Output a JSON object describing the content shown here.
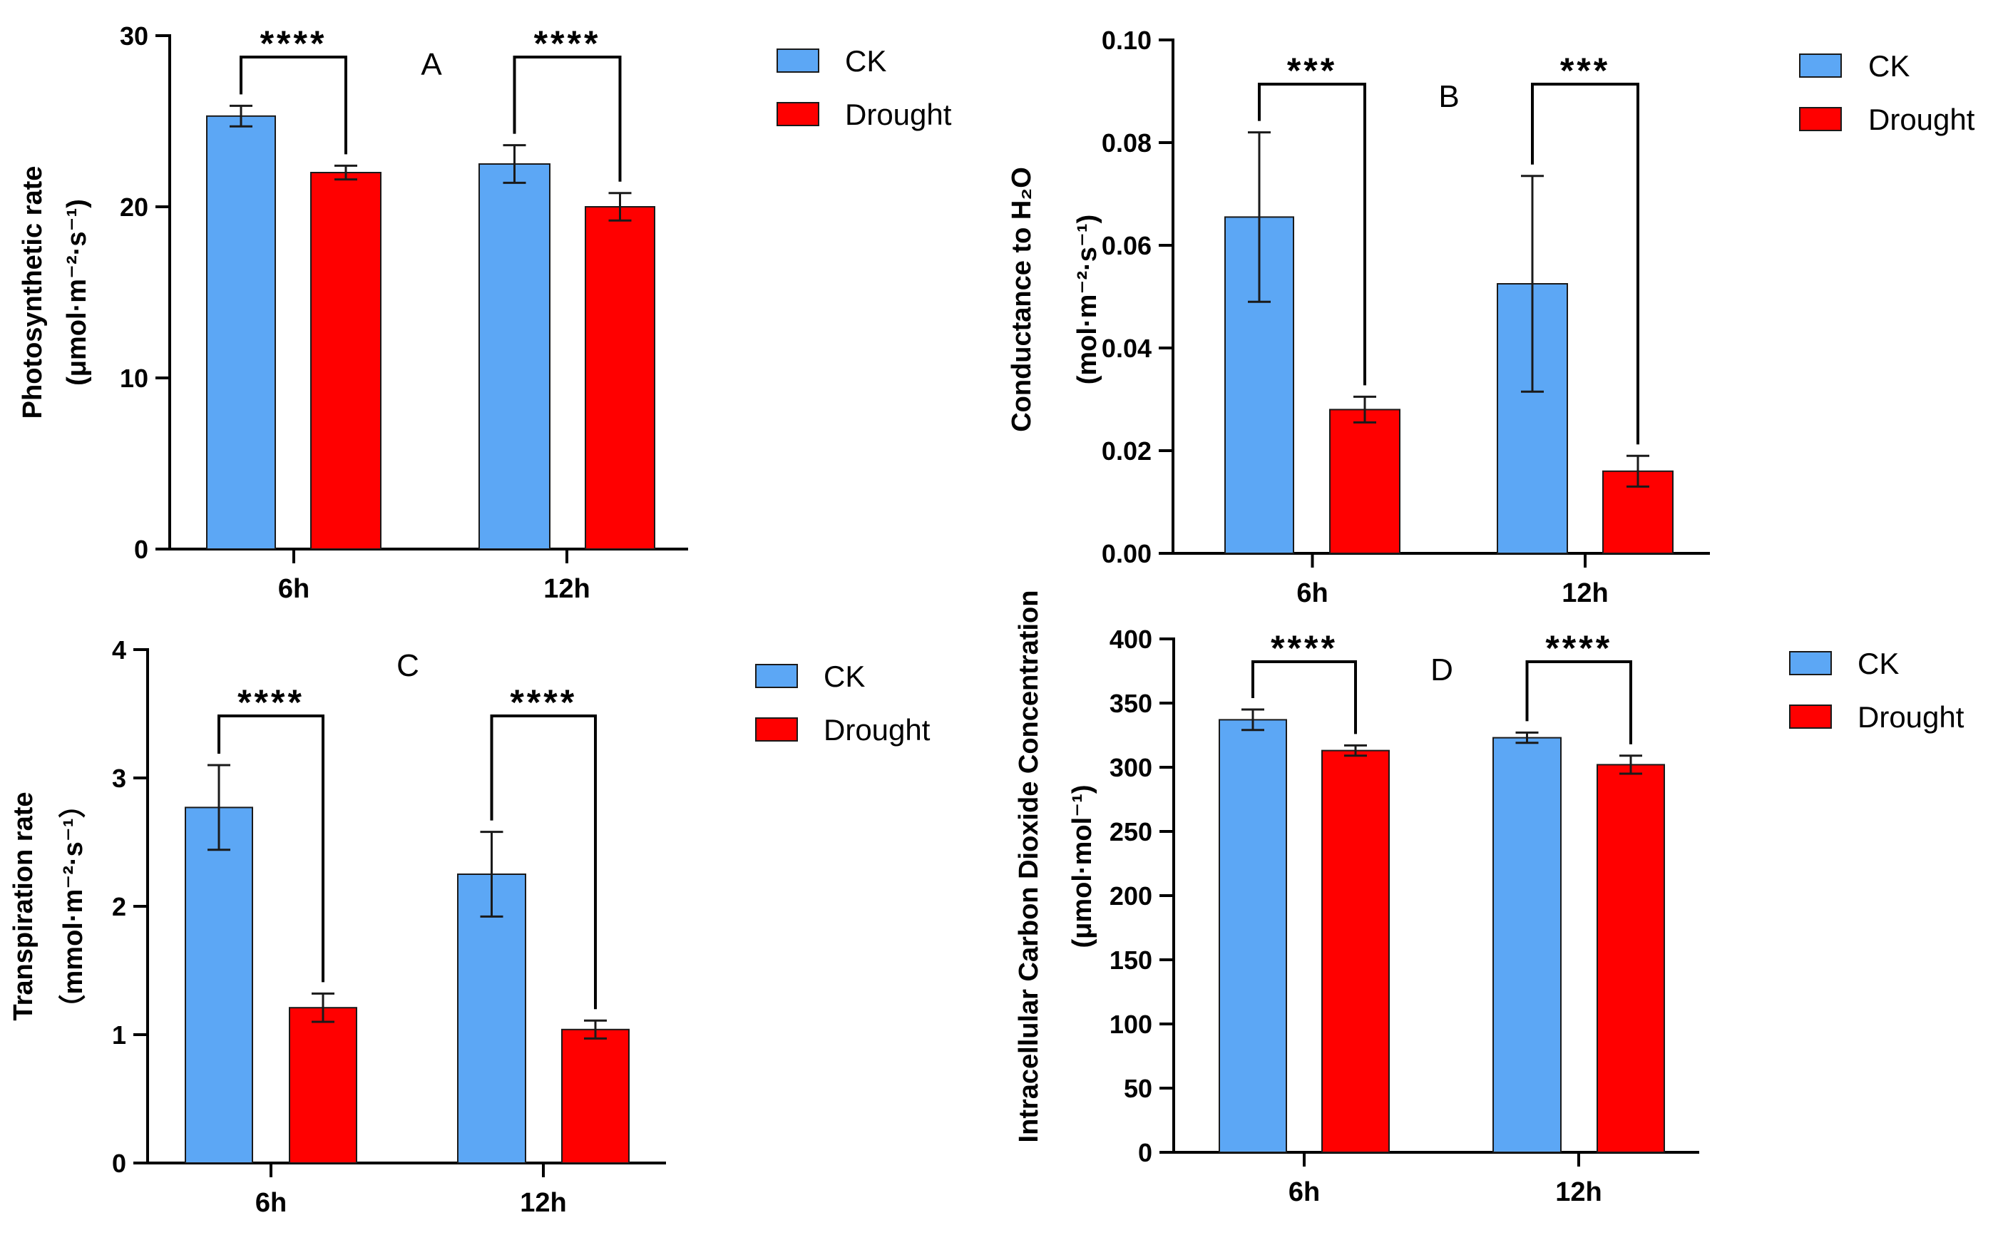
{
  "colors": {
    "ck": "#5ca7f5",
    "drought": "#ff0000"
  },
  "legend": {
    "ck": "CK",
    "drought": "Drought"
  },
  "chart_data": [
    {
      "type": "bar",
      "panel": "A",
      "ylabel_line1": "Photosynthetic rate",
      "ylabel_line2": "(μmol·m⁻²·s⁻¹)",
      "categories": [
        "6h",
        "12h"
      ],
      "ylim": [
        0,
        30
      ],
      "yticks": [
        0,
        10,
        20,
        30
      ],
      "ytick_labels": [
        "0",
        "10",
        "20",
        "30"
      ],
      "series": [
        {
          "name": "CK",
          "values": [
            25.3,
            22.5
          ],
          "errors": [
            0.6,
            1.1
          ]
        },
        {
          "name": "Drought",
          "values": [
            22.0,
            20.0
          ],
          "errors": [
            0.4,
            0.8
          ]
        }
      ],
      "significance": [
        "****",
        "****"
      ]
    },
    {
      "type": "bar",
      "panel": "B",
      "ylabel_line1": "Conductance to H₂O",
      "ylabel_line2": "(mol·m⁻²·s⁻¹)",
      "categories": [
        "6h",
        "12h"
      ],
      "ylim": [
        0,
        0.1
      ],
      "yticks": [
        0,
        0.02,
        0.04,
        0.06,
        0.08,
        0.1
      ],
      "ytick_labels": [
        "0.00",
        "0.02",
        "0.04",
        "0.06",
        "0.08",
        "0.10"
      ],
      "series": [
        {
          "name": "CK",
          "values": [
            0.0655,
            0.0525
          ],
          "errors": [
            0.0165,
            0.021
          ]
        },
        {
          "name": "Drought",
          "values": [
            0.028,
            0.016
          ],
          "errors": [
            0.0025,
            0.003
          ]
        }
      ],
      "significance": [
        "***",
        "***"
      ]
    },
    {
      "type": "bar",
      "panel": "C",
      "ylabel_line1": "Transpiration rate",
      "ylabel_line2": "（mmol·m⁻²·s⁻¹）",
      "categories": [
        "6h",
        "12h"
      ],
      "ylim": [
        0,
        4
      ],
      "yticks": [
        0,
        1,
        2,
        3,
        4
      ],
      "ytick_labels": [
        "0",
        "1",
        "2",
        "3",
        "4"
      ],
      "series": [
        {
          "name": "CK",
          "values": [
            2.77,
            2.25
          ],
          "errors": [
            0.33,
            0.33
          ]
        },
        {
          "name": "Drought",
          "values": [
            1.21,
            1.04
          ],
          "errors": [
            0.11,
            0.07
          ]
        }
      ],
      "significance": [
        "****",
        "****"
      ]
    },
    {
      "type": "bar",
      "panel": "D",
      "ylabel_line1": "Intracellular Carbon Dioxide Concentration",
      "ylabel_line2": "(μmol·mol⁻¹)",
      "categories": [
        "6h",
        "12h"
      ],
      "ylim": [
        0,
        400
      ],
      "yticks": [
        0,
        50,
        100,
        150,
        200,
        250,
        300,
        350,
        400
      ],
      "ytick_labels": [
        "0",
        "50",
        "100",
        "150",
        "200",
        "250",
        "300",
        "350",
        "400"
      ],
      "series": [
        {
          "name": "CK",
          "values": [
            337,
            323
          ],
          "errors": [
            8,
            4
          ]
        },
        {
          "name": "Drought",
          "values": [
            313,
            302
          ],
          "errors": [
            4,
            7
          ]
        }
      ],
      "significance": [
        "****",
        "****"
      ]
    }
  ]
}
